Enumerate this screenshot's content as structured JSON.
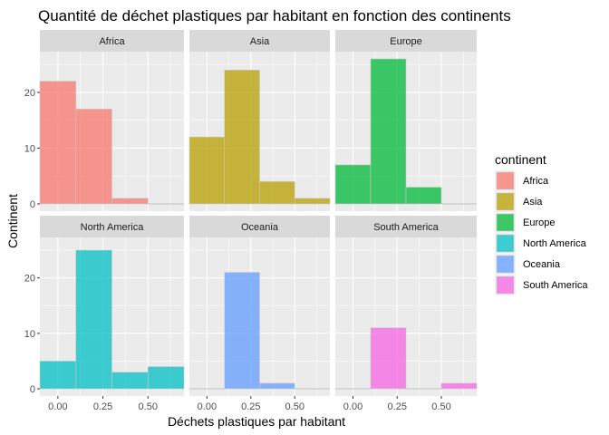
{
  "chart_data": {
    "type": "bar",
    "subtype": "faceted-histogram",
    "title": "Quantité de déchet plastiques par habitant en fonction des continents",
    "xlabel": "Déchets plastiques par habitant",
    "ylabel": "Continent",
    "legend_title": "continent",
    "legend_position": "right",
    "grid": true,
    "xlim": [
      -0.1,
      0.7
    ],
    "ylim": [
      -1.3,
      27.3
    ],
    "x_ticks": [
      0,
      0.25,
      0.5
    ],
    "x_tick_labels": [
      "0.00",
      "0.25",
      "0.50"
    ],
    "y_ticks": [
      0,
      10,
      20
    ],
    "y_tick_labels": [
      "0",
      "10",
      "20"
    ],
    "bins": [
      {
        "start": -0.1,
        "end": 0.1
      },
      {
        "start": 0.1,
        "end": 0.3
      },
      {
        "start": 0.3,
        "end": 0.5
      },
      {
        "start": 0.5,
        "end": 0.7
      }
    ],
    "series": [
      {
        "name": "Africa",
        "color": "#F8766D",
        "values": [
          22,
          17,
          1,
          0
        ]
      },
      {
        "name": "Asia",
        "color": "#B79F00",
        "values": [
          12,
          24,
          4,
          1
        ]
      },
      {
        "name": "Europe",
        "color": "#00BA38",
        "values": [
          7,
          26,
          3,
          0
        ]
      },
      {
        "name": "North America",
        "color": "#00BFC4",
        "values": [
          5,
          25,
          3,
          4
        ]
      },
      {
        "name": "Oceania",
        "color": "#619CFF",
        "values": [
          0,
          21,
          1,
          0
        ]
      },
      {
        "name": "South America",
        "color": "#F564E3",
        "values": [
          0,
          11,
          0,
          1
        ]
      }
    ],
    "facet_rows": 2,
    "facet_cols": 3,
    "bar_opacity": 0.75
  },
  "colors": {
    "panel_background": "#EBEBEB",
    "strip_background": "#D9D9D9",
    "grid_major": "#FFFFFF",
    "bar_outline": "#C8C8C8"
  }
}
